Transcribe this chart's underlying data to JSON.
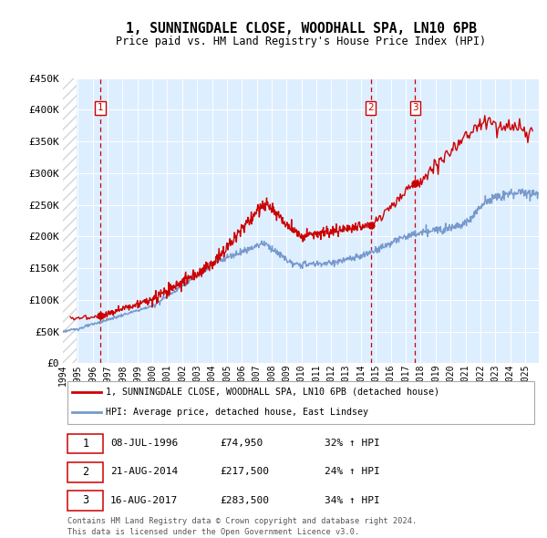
{
  "title": "1, SUNNINGDALE CLOSE, WOODHALL SPA, LN10 6PB",
  "subtitle": "Price paid vs. HM Land Registry's House Price Index (HPI)",
  "yticks": [
    0,
    50000,
    100000,
    150000,
    200000,
    250000,
    300000,
    350000,
    400000,
    450000
  ],
  "ytick_labels": [
    "£0",
    "£50K",
    "£100K",
    "£150K",
    "£200K",
    "£250K",
    "£300K",
    "£350K",
    "£400K",
    "£450K"
  ],
  "xmin": 1994.0,
  "xmax": 2025.92,
  "ymin": 0,
  "ymax": 450000,
  "sale_dates": [
    1996.52,
    2014.64,
    2017.63
  ],
  "sale_prices": [
    74950,
    217500,
    283500
  ],
  "sale_labels": [
    "1",
    "2",
    "3"
  ],
  "sale_pcts": [
    "32% ↑ HPI",
    "24% ↑ HPI",
    "34% ↑ HPI"
  ],
  "sale_date_strs": [
    "08-JUL-1996",
    "21-AUG-2014",
    "16-AUG-2017"
  ],
  "legend_line1": "1, SUNNINGDALE CLOSE, WOODHALL SPA, LN10 6PB (detached house)",
  "legend_line2": "HPI: Average price, detached house, East Lindsey",
  "footnote1": "Contains HM Land Registry data © Crown copyright and database right 2024.",
  "footnote2": "This data is licensed under the Open Government Licence v3.0.",
  "line_color_red": "#cc0000",
  "line_color_blue": "#7799cc",
  "bg_color": "#ddeeff",
  "grid_color": "#ffffff"
}
